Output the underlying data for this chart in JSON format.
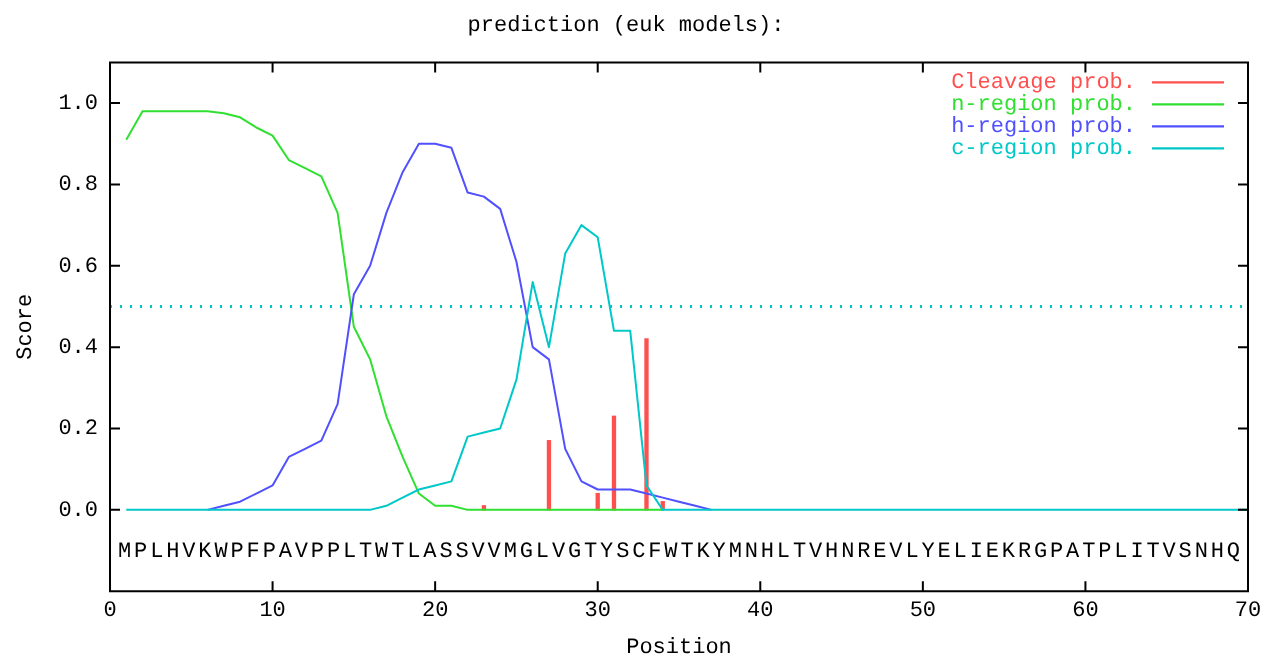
{
  "chart_data": {
    "type": "line",
    "title": "prediction (euk models):",
    "xlabel": "Position",
    "ylabel": "Score",
    "x": [
      1,
      2,
      3,
      4,
      5,
      6,
      7,
      8,
      9,
      10,
      11,
      12,
      13,
      14,
      15,
      16,
      17,
      18,
      19,
      20,
      21,
      22,
      23,
      24,
      25,
      26,
      27,
      28,
      29,
      30,
      31,
      32,
      33,
      34,
      35,
      36,
      37,
      38,
      39,
      40,
      41,
      42,
      43,
      44,
      45,
      46,
      47,
      48,
      49,
      50,
      51,
      52,
      53,
      54,
      55,
      56,
      57,
      58,
      59,
      60,
      61,
      62,
      63,
      64,
      65,
      66,
      67,
      68,
      69,
      70
    ],
    "series": [
      {
        "name": "Cleavage prob.",
        "color": "#ff5050",
        "type": "bar",
        "x": [
          23,
          27,
          30,
          31,
          33,
          34
        ],
        "values": [
          0.01,
          0.17,
          0.04,
          0.23,
          0.42,
          0.02
        ]
      },
      {
        "name": "n-region prob.",
        "color": "#30e030",
        "values": [
          0.91,
          0.98,
          0.98,
          0.98,
          0.98,
          0.98,
          0.975,
          0.965,
          0.94,
          0.92,
          0.86,
          0.84,
          0.82,
          0.73,
          0.45,
          0.37,
          0.23,
          0.13,
          0.04,
          0.01,
          0.01,
          0,
          0,
          0,
          0,
          0,
          0,
          0,
          0,
          0,
          0,
          0,
          0,
          0,
          null,
          null,
          null,
          null,
          null,
          null,
          null,
          null,
          null,
          null,
          null,
          null,
          null,
          null,
          null,
          null,
          null,
          null,
          null,
          null,
          null,
          null,
          null,
          null,
          null,
          null,
          null,
          null,
          null,
          null,
          null,
          null,
          null,
          null,
          null,
          null
        ]
      },
      {
        "name": "h-region prob.",
        "color": "#5050ff",
        "values": [
          null,
          null,
          null,
          null,
          null,
          0,
          0.01,
          0.02,
          0.04,
          0.06,
          0.13,
          0.15,
          0.17,
          0.26,
          0.53,
          0.6,
          0.73,
          0.83,
          0.9,
          0.9,
          0.89,
          0.78,
          0.77,
          0.74,
          0.61,
          0.4,
          0.37,
          0.15,
          0.07,
          0.05,
          0.05,
          0.05,
          0.04,
          0.03,
          0.02,
          0.01,
          0,
          null,
          null,
          null,
          null,
          null,
          null,
          null,
          null,
          null,
          null,
          null,
          null,
          null,
          null,
          null,
          null,
          null,
          null,
          null,
          null,
          null,
          null,
          null,
          null,
          null,
          null,
          null,
          null,
          null,
          null,
          null,
          null,
          null
        ]
      },
      {
        "name": "c-region prob.",
        "color": "#00c8c8",
        "values": [
          0,
          0,
          0,
          0,
          0,
          0,
          0,
          0,
          0,
          0,
          0,
          0,
          0,
          0,
          0,
          0,
          0.01,
          0.03,
          0.05,
          0.06,
          0.07,
          0.18,
          0.19,
          0.2,
          0.32,
          0.56,
          0.4,
          0.63,
          0.7,
          0.67,
          0.44,
          0.44,
          0.06,
          0,
          0,
          0,
          0,
          0,
          0,
          0,
          0,
          0,
          0,
          0,
          0,
          0,
          0,
          0,
          0,
          0,
          0,
          0,
          0,
          0,
          0,
          0,
          0,
          0,
          0,
          0,
          0,
          0,
          0,
          0,
          0,
          0,
          0,
          0,
          0,
          0
        ]
      }
    ],
    "xlim": [
      0,
      70
    ],
    "xticks": [
      0,
      10,
      20,
      30,
      40,
      50,
      60,
      70
    ],
    "ylim": [
      -0.2,
      1.1
    ],
    "yticks": [
      {
        "value": 0,
        "label": "0.0"
      },
      {
        "value": 0.2,
        "label": "0.2"
      },
      {
        "value": 0.4,
        "label": "0.4"
      },
      {
        "value": 0.6,
        "label": "0.6"
      },
      {
        "value": 0.8,
        "label": "0.8"
      },
      {
        "value": 1,
        "label": "1.0"
      }
    ],
    "ref_lines": [
      {
        "axis": "y",
        "value": 0.5,
        "label": null,
        "color": "#00c8c8",
        "line_style": "dotted"
      }
    ],
    "annotations": [
      "MPLHVKWPFPAVPPLTWTLASSVVMGLVGTYSCFWTKYMNHLTVHNREVLYELIEKRGPATPLITVSNHQ"
    ],
    "grid": false,
    "legend": "top right",
    "marker": "none",
    "line_style": "solid"
  }
}
